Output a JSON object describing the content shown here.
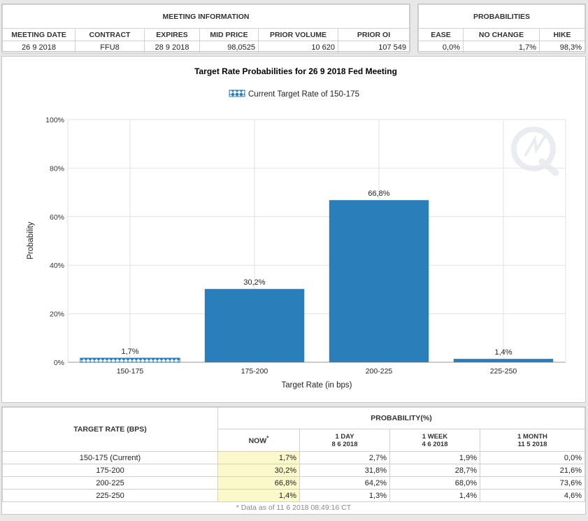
{
  "meeting_info": {
    "title": "MEETING INFORMATION",
    "columns": [
      "MEETING DATE",
      "CONTRACT",
      "EXPIRES",
      "MID PRICE",
      "PRIOR VOLUME",
      "PRIOR OI"
    ],
    "row": [
      "26 9 2018",
      "FFU8",
      "28 9 2018",
      "98,0525",
      "10 620",
      "107 549"
    ]
  },
  "probabilities": {
    "title": "PROBABILITIES",
    "columns": [
      "EASE",
      "NO CHANGE",
      "HIKE"
    ],
    "row": [
      "0,0%",
      "1,7%",
      "98,3%"
    ]
  },
  "colors": {
    "bar": "#2a7fba",
    "current_hatch": "#2a7fba",
    "now_cell": "#fbf8cc"
  },
  "chart_data": {
    "type": "bar",
    "title": "Target Rate Probabilities for 26 9 2018 Fed Meeting",
    "legend": "Current Target Rate of 150-175",
    "legend_position": "top-center",
    "xlabel": "Target Rate (in bps)",
    "ylabel": "Probability",
    "categories": [
      "150-175",
      "175-200",
      "200-225",
      "225-250"
    ],
    "values": [
      1.7,
      30.2,
      66.8,
      1.4
    ],
    "labels": [
      "1,7%",
      "30,2%",
      "66,8%",
      "1,4%"
    ],
    "current_category_index": 0,
    "ylim": [
      0,
      100
    ],
    "yticks": [
      0,
      20,
      40,
      60,
      80,
      100
    ],
    "ytick_labels": [
      "0%",
      "20%",
      "40%",
      "60%",
      "80%",
      "100%"
    ],
    "grid": true
  },
  "target_table": {
    "rate_header": "TARGET RATE (BPS)",
    "prob_header": "PROBABILITY(%)",
    "now_label": "NOW",
    "now_mark": "*",
    "periods": [
      {
        "label": "1 DAY",
        "date": "8 6 2018"
      },
      {
        "label": "1 WEEK",
        "date": "4 6 2018"
      },
      {
        "label": "1 MONTH",
        "date": "11 5 2018"
      }
    ],
    "rows": [
      [
        "150-175 (Current)",
        "1,7%",
        "2,7%",
        "1,9%",
        "0,0%"
      ],
      [
        "175-200",
        "30,2%",
        "31,8%",
        "28,7%",
        "21,6%"
      ],
      [
        "200-225",
        "66,8%",
        "64,2%",
        "68,0%",
        "73,6%"
      ],
      [
        "225-250",
        "1,4%",
        "1,3%",
        "1,4%",
        "4,6%"
      ]
    ],
    "footnote": "* Data as of 11 6 2018 08:49:16 CT"
  }
}
